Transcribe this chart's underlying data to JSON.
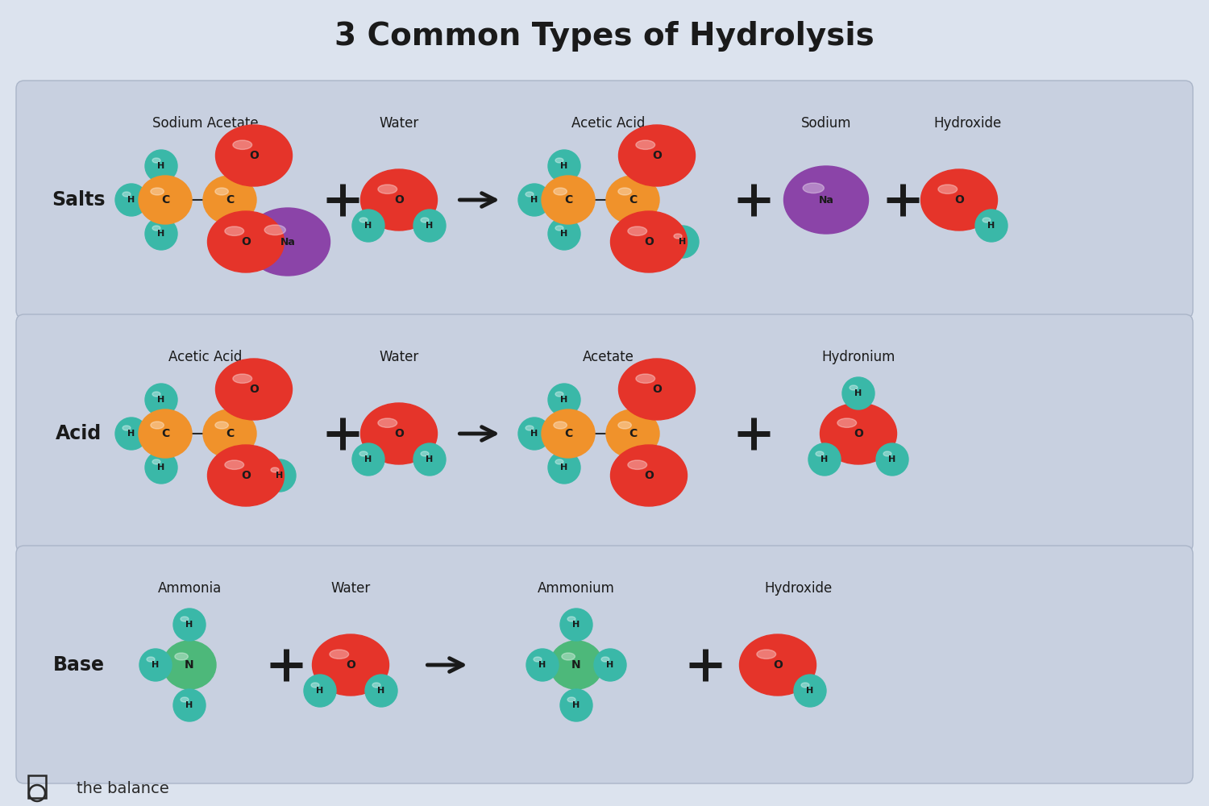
{
  "title": "3 Common Types of Hydrolysis",
  "background_color": "#dce3ee",
  "panel_color": "#c8d0e0",
  "title_color": "#1a1a1a",
  "atom_colors": {
    "C": "#f0922b",
    "H": "#3ab8a8",
    "O": "#e5342a",
    "Na": "#8b44a8",
    "N": "#4db87a"
  },
  "atom_text_color": "#1a1a1a",
  "panel_border_color": "#aab5c8",
  "rows": [
    "Salts",
    "Acid",
    "Base"
  ],
  "row1_labels": [
    "Sodium Acetate",
    "Water",
    "Acetic Acid",
    "Sodium",
    "Hydroxide"
  ],
  "row2_labels": [
    "Acetic Acid",
    "Water",
    "Acetate",
    "Hydronium"
  ],
  "row3_labels": [
    "Ammonia",
    "Water",
    "Ammonium",
    "Hydroxide"
  ]
}
